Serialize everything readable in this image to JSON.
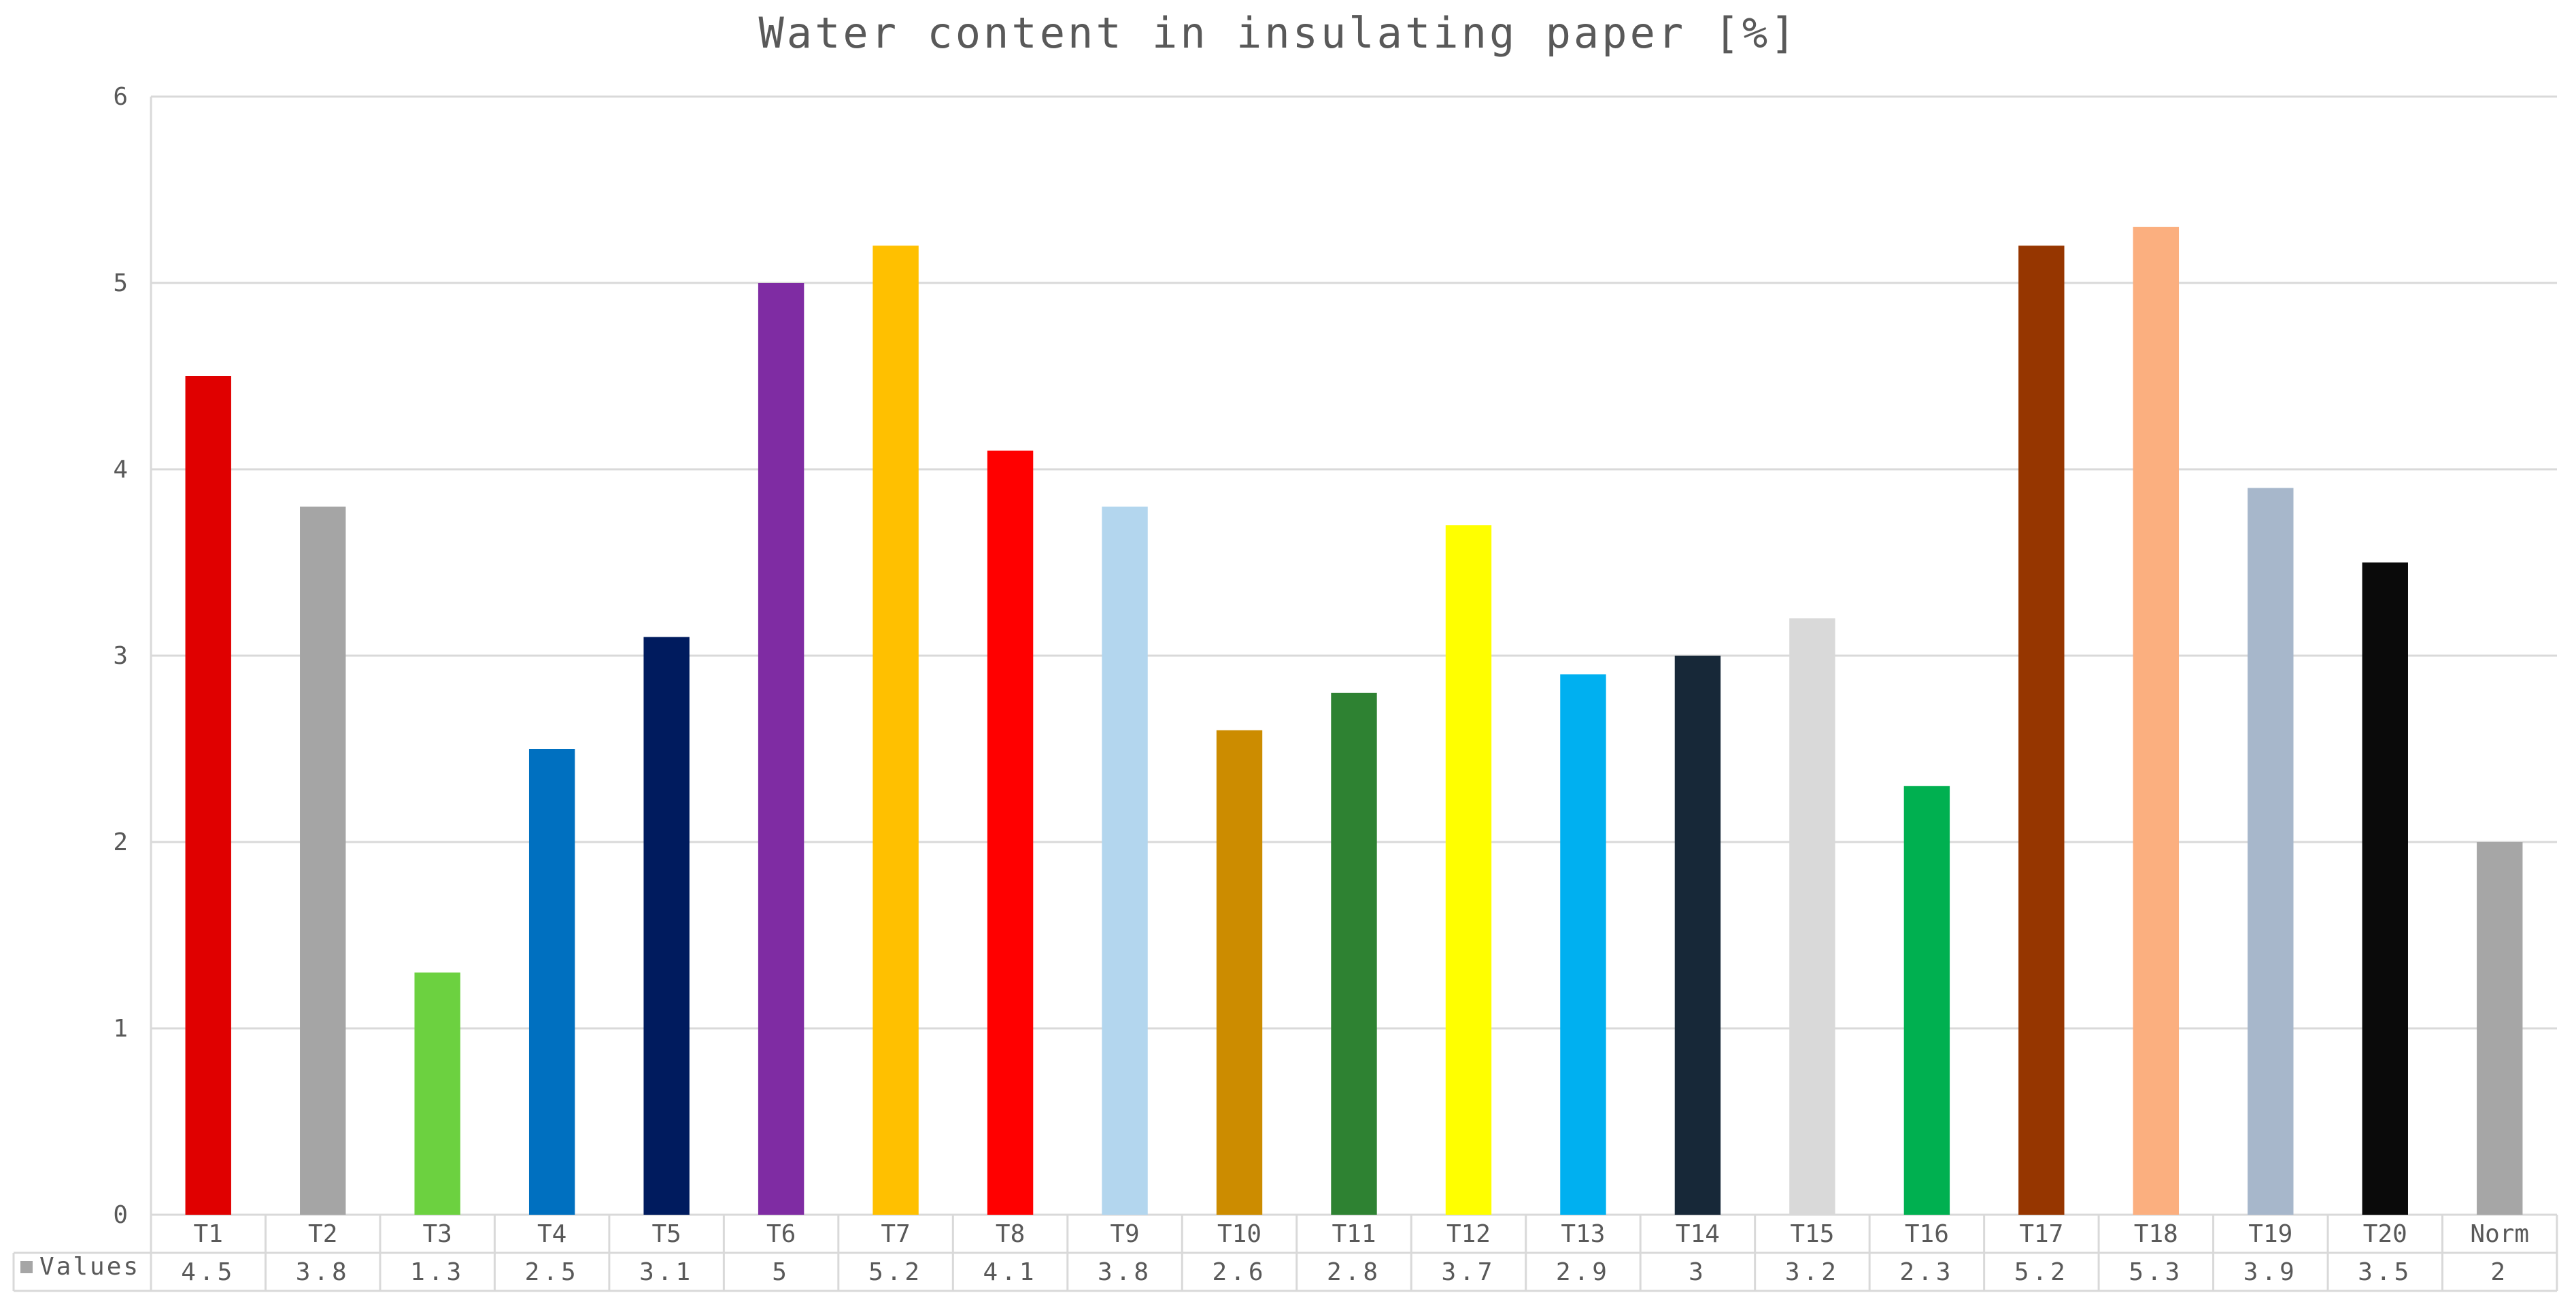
{
  "chart_data": {
    "type": "bar",
    "title": "Water content in insulating paper [%]",
    "xlabel": "",
    "ylabel": "",
    "ylim": [
      0,
      6
    ],
    "yticks": [
      0,
      1,
      2,
      3,
      4,
      5,
      6
    ],
    "grid": true,
    "legend": "data-table-left",
    "categories": [
      "T1",
      "T2",
      "T3",
      "T4",
      "T5",
      "T6",
      "T7",
      "T8",
      "T9",
      "T10",
      "T11",
      "T12",
      "T13",
      "T14",
      "T15",
      "T16",
      "T17",
      "T18",
      "T19",
      "T20",
      "Norm"
    ],
    "series": [
      {
        "name": "Values",
        "values": [
          4.5,
          3.8,
          1.3,
          2.5,
          3.1,
          5,
          5.2,
          4.1,
          3.8,
          2.6,
          2.8,
          3.7,
          2.9,
          3,
          3.2,
          2.3,
          5.2,
          5.3,
          3.9,
          3.5,
          2
        ],
        "value_labels": [
          "4.5",
          "3.8",
          "1.3",
          "2.5",
          "3.1",
          "5",
          "5.2",
          "4.1",
          "3.8",
          "2.6",
          "2.8",
          "3.7",
          "2.9",
          "3",
          "3.2",
          "2.3",
          "5.2",
          "5.3",
          "3.9",
          "3.5",
          "2"
        ],
        "colors": [
          "#E00000",
          "#A5A5A5",
          "#6CD140",
          "#0070C0",
          "#001B5E",
          "#7F2CA3",
          "#FFC000",
          "#FF0000",
          "#B3D6EE",
          "#CC8C00",
          "#2E8232",
          "#FFFF00",
          "#00B0F0",
          "#172838",
          "#D9D9D9",
          "#00B050",
          "#963600",
          "#FBAF7F",
          "#A7B7CB",
          "#0A0A0A",
          "#A6A6A6"
        ]
      }
    ],
    "legend_marker_color": "#A6A6A6"
  }
}
